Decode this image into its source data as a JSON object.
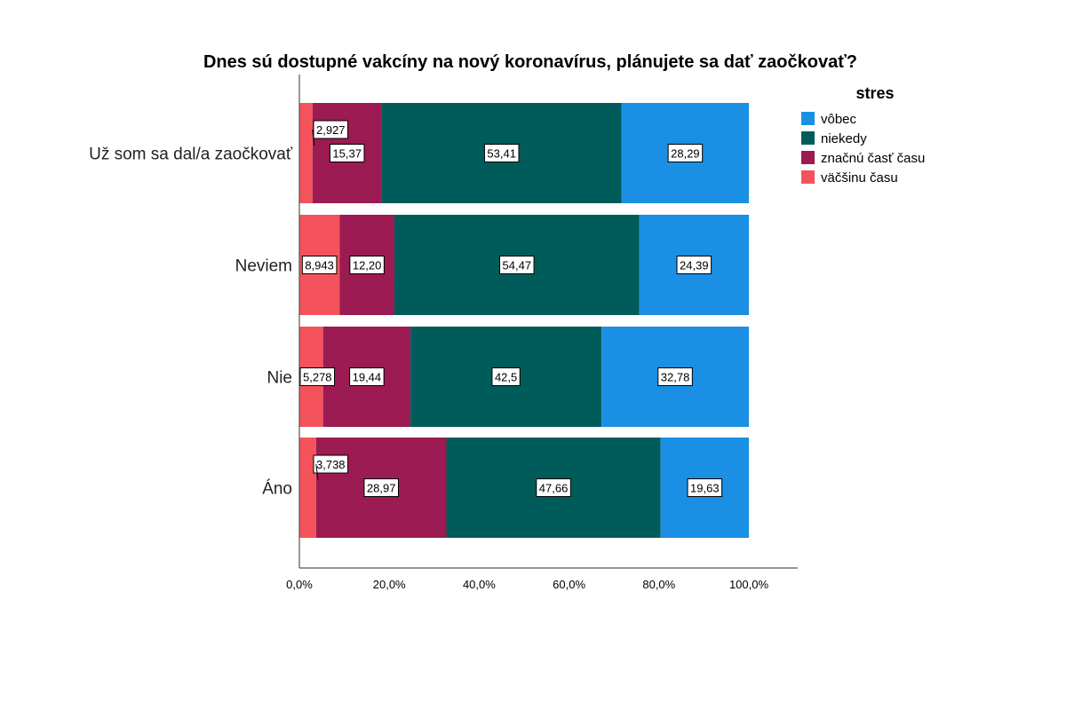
{
  "chart_data": {
    "type": "bar",
    "orientation": "horizontal",
    "stacked": true,
    "percent": true,
    "title": "Dnes sú dostupné vakcíny na nový koronavírus, plánujete sa dať zaočkovať?",
    "categories": [
      "Už som sa dal/a zaočkovať",
      "Neviem",
      "Nie",
      "Áno"
    ],
    "series": [
      {
        "name": "väčšinu času",
        "color": "#f4535b",
        "values": [
          2.927,
          8.943,
          5.278,
          3.738
        ],
        "labels": [
          "2,927",
          "8,943",
          "5,278",
          "3,738"
        ]
      },
      {
        "name": "značnú časť času",
        "color": "#9b1b52",
        "values": [
          15.37,
          12.2,
          19.44,
          28.97
        ],
        "labels": [
          "15,37",
          "12,20",
          "19,44",
          "28,97"
        ]
      },
      {
        "name": "niekedy",
        "color": "#005c5a",
        "values": [
          53.41,
          54.47,
          42.5,
          47.66
        ],
        "labels": [
          "53,41",
          "54,47",
          "42,5",
          "47,66"
        ]
      },
      {
        "name": "vôbec",
        "color": "#1a8fe3",
        "values": [
          28.29,
          24.39,
          32.78,
          19.63
        ],
        "labels": [
          "28,29",
          "24,39",
          "32,78",
          "19,63"
        ]
      }
    ],
    "xlim": [
      0,
      100
    ],
    "x_ticks": [
      "0,0%",
      "20,0%",
      "40,0%",
      "60,0%",
      "80,0%",
      "100,0%"
    ],
    "grid": false,
    "legend": {
      "title": "stres",
      "placement": "top-right",
      "order": [
        "vôbec",
        "niekedy",
        "značnú časť času",
        "väčšinu času"
      ]
    }
  }
}
